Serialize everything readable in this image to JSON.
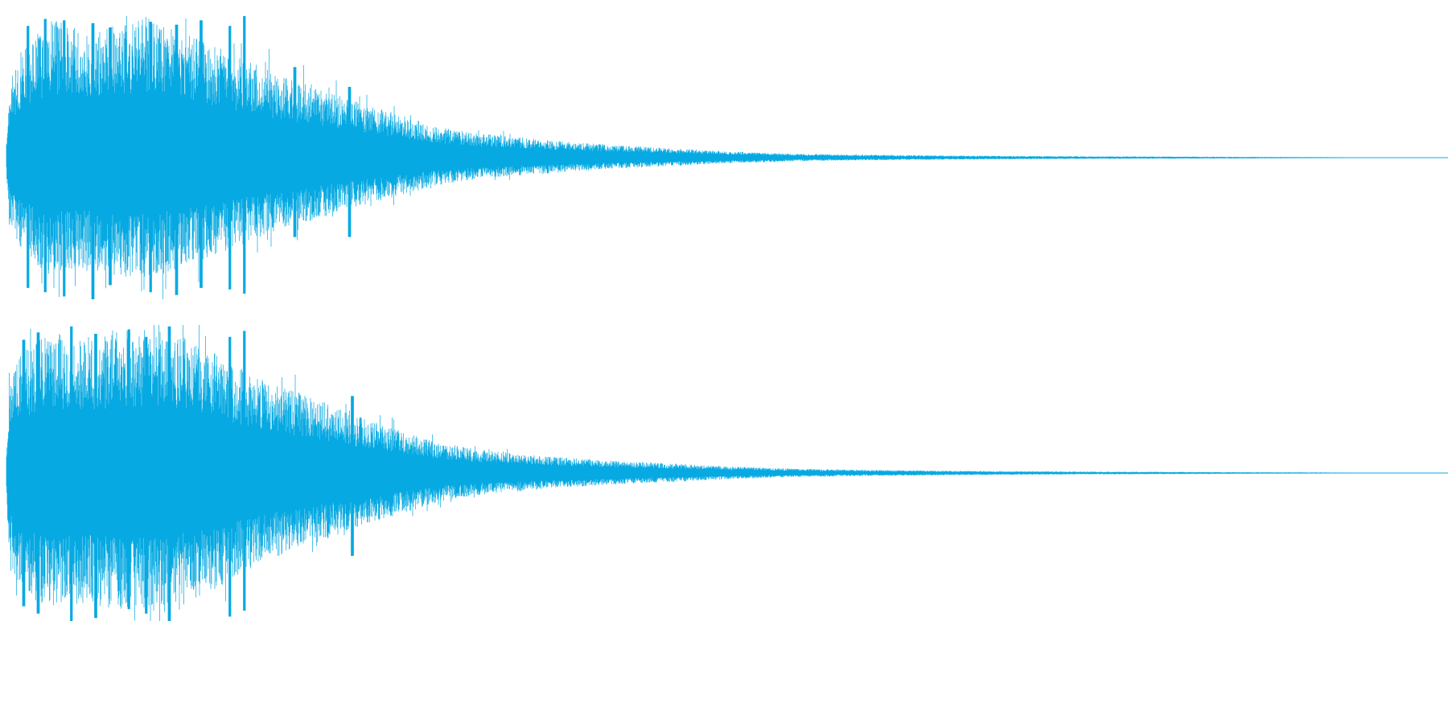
{
  "chart_data": {
    "type": "area",
    "title": "",
    "xlabel": "",
    "ylabel": "",
    "grid": false,
    "legend": "none",
    "color": "#06a9e2",
    "ylim": [
      -1,
      1
    ],
    "xlim": [
      0,
      1
    ],
    "channels": [
      {
        "envelope": {
          "x": [
            0,
            0.002,
            0.01,
            0.03,
            0.05,
            0.08,
            0.1,
            0.12,
            0.14,
            0.16,
            0.18,
            0.2,
            0.22,
            0.24,
            0.27,
            0.3,
            0.33,
            0.38,
            0.42,
            0.47,
            0.5,
            0.53,
            0.55,
            0.6,
            0.65,
            0.7,
            0.75,
            0.8,
            0.85,
            0.9,
            0.93,
            0.95,
            0.98,
            1.0
          ],
          "upper": [
            0.1,
            0.45,
            0.62,
            0.82,
            0.76,
            0.8,
            0.82,
            0.74,
            0.68,
            0.6,
            0.52,
            0.46,
            0.4,
            0.34,
            0.26,
            0.18,
            0.14,
            0.1,
            0.075,
            0.052,
            0.038,
            0.028,
            0.022,
            0.017,
            0.013,
            0.01,
            0.008,
            0.007,
            0.005,
            0.004,
            0.0025,
            0.0015,
            0.0008,
            0.0005
          ],
          "lower": [
            -0.1,
            -0.4,
            -0.55,
            -0.7,
            -0.66,
            -0.7,
            -0.72,
            -0.65,
            -0.6,
            -0.52,
            -0.46,
            -0.4,
            -0.35,
            -0.3,
            -0.23,
            -0.16,
            -0.12,
            -0.09,
            -0.065,
            -0.046,
            -0.034,
            -0.026,
            -0.02,
            -0.015,
            -0.012,
            -0.009,
            -0.007,
            -0.006,
            -0.005,
            -0.0035,
            -0.0025,
            -0.0015,
            -0.0008,
            -0.0005
          ],
          "peak_positions": [
            0.015,
            0.027,
            0.04,
            0.06,
            0.072,
            0.1,
            0.118,
            0.135,
            0.155,
            0.165,
            0.2,
            0.238
          ],
          "peak_upper": [
            0.93,
            0.98,
            0.97,
            0.95,
            0.92,
            0.96,
            0.94,
            0.97,
            0.93,
            1.0,
            0.64,
            0.5
          ],
          "peak_lower": [
            -0.92,
            -0.95,
            -0.98,
            -1.0,
            -0.9,
            -0.95,
            -0.97,
            -0.92,
            -0.93,
            -0.96,
            -0.56,
            -0.56
          ]
        },
        "seed": 17
      },
      {
        "envelope": {
          "x": [
            0,
            0.002,
            0.01,
            0.03,
            0.05,
            0.08,
            0.1,
            0.12,
            0.14,
            0.16,
            0.18,
            0.2,
            0.22,
            0.24,
            0.27,
            0.3,
            0.33,
            0.38,
            0.42,
            0.47,
            0.5,
            0.53,
            0.55,
            0.6,
            0.65,
            0.7,
            0.75,
            0.8,
            0.85,
            0.9,
            0.93,
            0.95,
            0.98,
            1.0
          ],
          "upper": [
            0.1,
            0.5,
            0.68,
            0.8,
            0.76,
            0.8,
            0.82,
            0.78,
            0.7,
            0.6,
            0.52,
            0.46,
            0.4,
            0.33,
            0.25,
            0.17,
            0.13,
            0.09,
            0.07,
            0.05,
            0.038,
            0.028,
            0.024,
            0.018,
            0.013,
            0.01,
            0.008,
            0.007,
            0.005,
            0.004,
            0.0025,
            0.0015,
            0.0008,
            0.0005
          ],
          "lower": [
            -0.1,
            -0.5,
            -0.66,
            -0.78,
            -0.74,
            -0.78,
            -0.8,
            -0.74,
            -0.68,
            -0.58,
            -0.5,
            -0.44,
            -0.38,
            -0.32,
            -0.24,
            -0.16,
            -0.12,
            -0.085,
            -0.065,
            -0.047,
            -0.035,
            -0.027,
            -0.022,
            -0.017,
            -0.013,
            -0.01,
            -0.008,
            -0.0065,
            -0.005,
            -0.0035,
            -0.0025,
            -0.0015,
            -0.0008,
            -0.0005
          ],
          "peak_positions": [
            0.012,
            0.022,
            0.045,
            0.062,
            0.085,
            0.097,
            0.113,
            0.155,
            0.165,
            0.24
          ],
          "peak_upper": [
            0.9,
            0.95,
            0.99,
            0.94,
            0.97,
            0.92,
            0.99,
            0.92,
            0.96,
            0.52
          ],
          "peak_lower": [
            -0.9,
            -0.95,
            -1.0,
            -0.98,
            -0.92,
            -0.95,
            -1.0,
            -0.97,
            -0.93,
            -0.56
          ]
        },
        "seed": 41
      }
    ]
  }
}
